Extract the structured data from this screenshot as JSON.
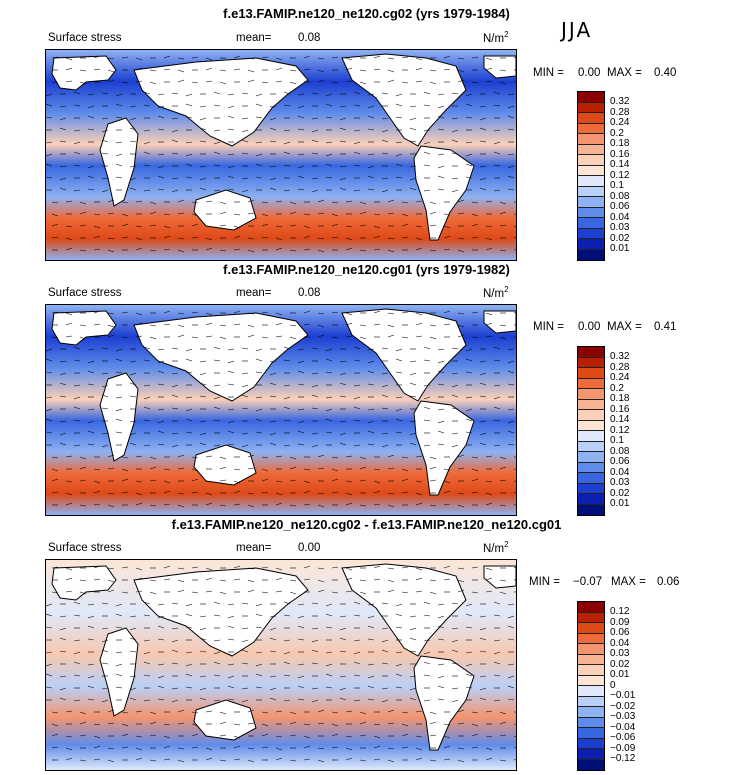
{
  "season": "JJA",
  "panels": [
    {
      "title": "f.e13.FAMIP.ne120_ne120.cg02 (yrs 1979-1984)",
      "variable": "Surface stress",
      "mean_label": "mean=",
      "mean_value": "0.08",
      "units": "N/m",
      "units_sup": "2",
      "min_label": "MIN =",
      "min_value": "0.00",
      "max_label": "MAX =",
      "max_value": "0.40",
      "colorbar": [
        "0.32",
        "0.28",
        "0.24",
        "0.2",
        "0.18",
        "0.16",
        "0.14",
        "0.12",
        "0.1",
        "0.08",
        "0.06",
        "0.04",
        "0.03",
        "0.02",
        "0.01"
      ]
    },
    {
      "title": "f.e13.FAMIP.ne120_ne120.cg01 (yrs 1979-1982)",
      "variable": "Surface stress",
      "mean_label": "mean=",
      "mean_value": "0.08",
      "units": "N/m",
      "units_sup": "2",
      "min_label": "MIN =",
      "min_value": "0.00",
      "max_label": "MAX =",
      "max_value": "0.41",
      "colorbar": [
        "0.32",
        "0.28",
        "0.24",
        "0.2",
        "0.18",
        "0.16",
        "0.14",
        "0.12",
        "0.1",
        "0.08",
        "0.06",
        "0.04",
        "0.03",
        "0.02",
        "0.01"
      ]
    },
    {
      "title": "f.e13.FAMIP.ne120_ne120.cg02 - f.e13.FAMIP.ne120_ne120.cg01",
      "variable": "Surface stress",
      "mean_label": "mean=",
      "mean_value": "0.00",
      "units": "N/m",
      "units_sup": "2",
      "min_label": "MIN =",
      "min_value": "−0.07",
      "max_label": "MAX =",
      "max_value": "0.06",
      "colorbar": [
        "0.12",
        "0.09",
        "0.06",
        "0.04",
        "0.03",
        "0.02",
        "0.01",
        "0",
        "−0.01",
        "−0.02",
        "−0.03",
        "−0.04",
        "−0.06",
        "−0.09",
        "−0.12"
      ]
    }
  ],
  "colors": {
    "abs_scale": [
      "#8b0000",
      "#b82000",
      "#dd4a18",
      "#ee6a38",
      "#f49570",
      "#f7b394",
      "#fbd0b8",
      "#fde5d6",
      "#dfe9fa",
      "#b9d0f8",
      "#8eb2f2",
      "#5f8cea",
      "#3866e0",
      "#1c3fd0",
      "#0c1fb0",
      "#000e78"
    ],
    "diff_scale": [
      "#8b0000",
      "#b82000",
      "#dd4a18",
      "#ee6a38",
      "#f49570",
      "#f7b394",
      "#fbd0b8",
      "#fde5d6",
      "#dfe9fa",
      "#b9d0f8",
      "#8eb2f2",
      "#5f8cea",
      "#3866e0",
      "#1c3fd0",
      "#0c1fb0",
      "#000e78"
    ]
  }
}
